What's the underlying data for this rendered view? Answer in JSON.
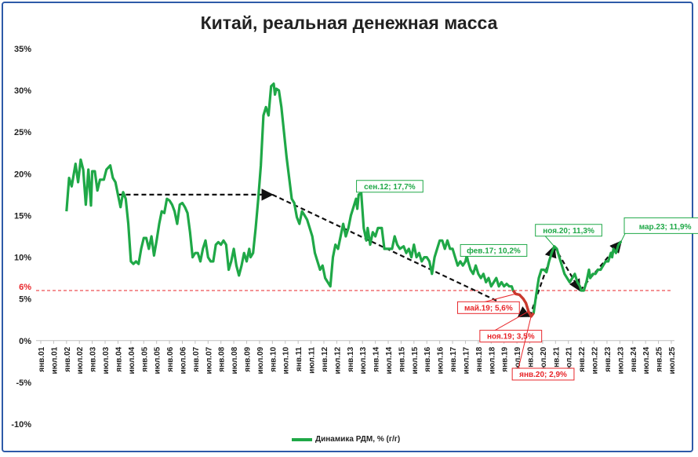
{
  "chart_data": {
    "type": "line",
    "title": "Китай, реальная денежная масса",
    "y_tick_labels": [
      "35%",
      "30%",
      "25%",
      "20%",
      "15%",
      "10%",
      "5%",
      "0%",
      "-5%",
      "-10%"
    ],
    "y_ticks": [
      35,
      30,
      25,
      20,
      15,
      10,
      5,
      0,
      -5,
      -10
    ],
    "ylim": [
      -10,
      35
    ],
    "x_tick_labels": [
      "янв.01",
      "июл.01",
      "янв.02",
      "июл.02",
      "янв.03",
      "июл.03",
      "янв.04",
      "июл.04",
      "янв.05",
      "июл.05",
      "янв.06",
      "июл.06",
      "янв.07",
      "июл.07",
      "янв.08",
      "июл.08",
      "янв.09",
      "июл.09",
      "янв.10",
      "июл.10",
      "янв.11",
      "июл.11",
      "янв.12",
      "июл.12",
      "янв.13",
      "июл.13",
      "янв.14",
      "июл.14",
      "янв.15",
      "июл.15",
      "янв.16",
      "июл.16",
      "янв.17",
      "июл.17",
      "янв.18",
      "июл.18",
      "янв.19",
      "июл.19",
      "янв.20",
      "июл.20",
      "янв.21",
      "июл.21",
      "янв.22",
      "июл.22",
      "янв.23",
      "июл.23",
      "янв.24",
      "июл.24",
      "янв.25",
      "июл.25"
    ],
    "reference_line": {
      "label": "6%",
      "value": 6,
      "color": "#e8262a"
    },
    "series": [
      {
        "name": "Динамика РДМ, % (г/г)",
        "color": "#1fa847",
        "highlight_color": "#e8262a",
        "points": [
          [
            2002.0,
            15.5
          ],
          [
            2002.1,
            19.5
          ],
          [
            2002.2,
            18.5
          ],
          [
            2002.35,
            21.2
          ],
          [
            2002.45,
            19.0
          ],
          [
            2002.55,
            21.7
          ],
          [
            2002.65,
            20.5
          ],
          [
            2002.75,
            16.3
          ],
          [
            2002.85,
            20.5
          ],
          [
            2002.95,
            16.2
          ],
          [
            2003.0,
            20.3
          ],
          [
            2003.1,
            20.3
          ],
          [
            2003.2,
            18.0
          ],
          [
            2003.3,
            19.3
          ],
          [
            2003.45,
            19.3
          ],
          [
            2003.55,
            20.5
          ],
          [
            2003.7,
            21.0
          ],
          [
            2003.8,
            19.5
          ],
          [
            2003.9,
            19.0
          ],
          [
            2004.0,
            17.5
          ],
          [
            2004.1,
            16.0
          ],
          [
            2004.2,
            17.8
          ],
          [
            2004.3,
            17.0
          ],
          [
            2004.4,
            14.0
          ],
          [
            2004.5,
            9.5
          ],
          [
            2004.6,
            9.2
          ],
          [
            2004.7,
            9.5
          ],
          [
            2004.8,
            9.2
          ],
          [
            2004.9,
            11.0
          ],
          [
            2005.0,
            12.3
          ],
          [
            2005.1,
            12.3
          ],
          [
            2005.2,
            11.0
          ],
          [
            2005.3,
            12.5
          ],
          [
            2005.4,
            10.2
          ],
          [
            2005.5,
            12.0
          ],
          [
            2005.6,
            14.0
          ],
          [
            2005.7,
            15.5
          ],
          [
            2005.8,
            15.3
          ],
          [
            2005.9,
            17.0
          ],
          [
            2006.0,
            16.8
          ],
          [
            2006.1,
            16.3
          ],
          [
            2006.2,
            15.5
          ],
          [
            2006.3,
            14.0
          ],
          [
            2006.4,
            16.3
          ],
          [
            2006.5,
            16.5
          ],
          [
            2006.6,
            16.0
          ],
          [
            2006.7,
            15.3
          ],
          [
            2006.8,
            13.0
          ],
          [
            2006.9,
            10.0
          ],
          [
            2007.0,
            10.5
          ],
          [
            2007.1,
            10.5
          ],
          [
            2007.2,
            9.5
          ],
          [
            2007.3,
            11.0
          ],
          [
            2007.4,
            12.0
          ],
          [
            2007.5,
            10.0
          ],
          [
            2007.6,
            9.5
          ],
          [
            2007.7,
            9.5
          ],
          [
            2007.8,
            11.5
          ],
          [
            2007.9,
            11.8
          ],
          [
            2008.0,
            11.5
          ],
          [
            2008.1,
            12.0
          ],
          [
            2008.2,
            11.5
          ],
          [
            2008.3,
            8.5
          ],
          [
            2008.4,
            9.5
          ],
          [
            2008.5,
            11.0
          ],
          [
            2008.6,
            9.0
          ],
          [
            2008.7,
            7.8
          ],
          [
            2008.8,
            9.0
          ],
          [
            2008.9,
            10.5
          ],
          [
            2009.0,
            9.5
          ],
          [
            2009.1,
            11.0
          ],
          [
            2009.15,
            10.0
          ],
          [
            2009.25,
            10.5
          ],
          [
            2009.35,
            13.5
          ],
          [
            2009.45,
            17.0
          ],
          [
            2009.55,
            21.0
          ],
          [
            2009.65,
            27.0
          ],
          [
            2009.75,
            28.0
          ],
          [
            2009.85,
            27.0
          ],
          [
            2009.95,
            30.5
          ],
          [
            2010.05,
            30.8
          ],
          [
            2010.1,
            29.5
          ],
          [
            2010.15,
            30.2
          ],
          [
            2010.25,
            30.0
          ],
          [
            2010.35,
            28.0
          ],
          [
            2010.45,
            25.0
          ],
          [
            2010.55,
            22.0
          ],
          [
            2010.65,
            19.5
          ],
          [
            2010.75,
            17.0
          ],
          [
            2010.85,
            16.5
          ],
          [
            2010.95,
            14.8
          ],
          [
            2011.05,
            14.0
          ],
          [
            2011.15,
            15.5
          ],
          [
            2011.25,
            15.0
          ],
          [
            2011.35,
            14.5
          ],
          [
            2011.45,
            13.5
          ],
          [
            2011.55,
            12.5
          ],
          [
            2011.65,
            10.5
          ],
          [
            2011.75,
            9.5
          ],
          [
            2011.85,
            8.5
          ],
          [
            2011.95,
            9.0
          ],
          [
            2012.05,
            7.5
          ],
          [
            2012.15,
            7.0
          ],
          [
            2012.25,
            6.5
          ],
          [
            2012.35,
            10.0
          ],
          [
            2012.45,
            11.5
          ],
          [
            2012.55,
            11.0
          ],
          [
            2012.65,
            12.5
          ],
          [
            2012.75,
            14.0
          ],
          [
            2012.85,
            12.5
          ],
          [
            2012.95,
            13.5
          ],
          [
            2013.05,
            15.0
          ],
          [
            2013.15,
            16.0
          ],
          [
            2013.25,
            17.0
          ],
          [
            2013.3,
            15.8
          ],
          [
            2013.35,
            17.5
          ],
          [
            2013.45,
            17.7
          ],
          [
            2013.55,
            13.5
          ],
          [
            2013.65,
            12.0
          ],
          [
            2013.7,
            13.5
          ],
          [
            2013.8,
            11.5
          ],
          [
            2013.9,
            13.0
          ],
          [
            2014.0,
            12.5
          ],
          [
            2014.1,
            13.5
          ],
          [
            2014.25,
            13.5
          ],
          [
            2014.35,
            11.0
          ],
          [
            2014.5,
            11.0
          ],
          [
            2014.65,
            11.0
          ],
          [
            2014.75,
            12.5
          ],
          [
            2014.85,
            11.5
          ],
          [
            2014.95,
            11.0
          ],
          [
            2015.1,
            11.3
          ],
          [
            2015.2,
            10.5
          ],
          [
            2015.3,
            11.0
          ],
          [
            2015.4,
            10.0
          ],
          [
            2015.5,
            11.5
          ],
          [
            2015.6,
            10.0
          ],
          [
            2015.7,
            10.5
          ],
          [
            2015.8,
            9.5
          ],
          [
            2015.9,
            10.0
          ],
          [
            2016.0,
            10.0
          ],
          [
            2016.1,
            9.5
          ],
          [
            2016.2,
            8.0
          ],
          [
            2016.3,
            10.0
          ],
          [
            2016.4,
            11.0
          ],
          [
            2016.5,
            12.0
          ],
          [
            2016.6,
            12.0
          ],
          [
            2016.7,
            11.0
          ],
          [
            2016.8,
            12.0
          ],
          [
            2016.9,
            11.0
          ],
          [
            2017.0,
            11.0
          ],
          [
            2017.1,
            10.0
          ],
          [
            2017.2,
            9.0
          ],
          [
            2017.3,
            9.5
          ],
          [
            2017.4,
            9.0
          ],
          [
            2017.5,
            9.5
          ],
          [
            2017.55,
            10.2
          ],
          [
            2017.6,
            9.5
          ],
          [
            2017.7,
            8.5
          ],
          [
            2017.8,
            8.0
          ],
          [
            2017.9,
            9.0
          ],
          [
            2018.0,
            8.0
          ],
          [
            2018.1,
            7.5
          ],
          [
            2018.2,
            8.0
          ],
          [
            2018.3,
            7.0
          ],
          [
            2018.4,
            7.5
          ],
          [
            2018.5,
            6.5
          ],
          [
            2018.6,
            7.0
          ],
          [
            2018.7,
            7.5
          ],
          [
            2018.8,
            6.5
          ],
          [
            2018.9,
            7.0
          ],
          [
            2019.0,
            6.5
          ],
          [
            2019.1,
            6.8
          ],
          [
            2019.2,
            6.5
          ],
          [
            2019.3,
            6.5
          ],
          [
            2019.35,
            6.0
          ],
          [
            2019.45,
            5.6
          ],
          [
            2019.6,
            5.5
          ],
          [
            2019.75,
            5.0
          ],
          [
            2019.85,
            4.5
          ],
          [
            2019.95,
            3.5
          ],
          [
            2020.05,
            2.9
          ],
          [
            2020.15,
            3.3
          ],
          [
            2020.25,
            5.5
          ],
          [
            2020.35,
            7.5
          ],
          [
            2020.45,
            8.5
          ],
          [
            2020.55,
            8.5
          ],
          [
            2020.65,
            8.2
          ],
          [
            2020.75,
            9.5
          ],
          [
            2020.85,
            10.5
          ],
          [
            2020.95,
            11.3
          ],
          [
            2021.05,
            11.0
          ],
          [
            2021.15,
            10.0
          ],
          [
            2021.25,
            9.0
          ],
          [
            2021.35,
            8.0
          ],
          [
            2021.45,
            7.5
          ],
          [
            2021.55,
            7.0
          ],
          [
            2021.65,
            7.5
          ],
          [
            2021.75,
            8.0
          ],
          [
            2021.85,
            7.0
          ],
          [
            2021.95,
            6.5
          ],
          [
            2022.0,
            6.0
          ],
          [
            2022.1,
            6.0
          ],
          [
            2022.2,
            7.0
          ],
          [
            2022.3,
            8.5
          ],
          [
            2022.35,
            7.5
          ],
          [
            2022.45,
            8.0
          ],
          [
            2022.55,
            8.0
          ],
          [
            2022.65,
            8.5
          ],
          [
            2022.75,
            8.5
          ],
          [
            2022.85,
            9.0
          ],
          [
            2022.95,
            9.5
          ],
          [
            2023.05,
            9.5
          ],
          [
            2023.15,
            10.5
          ],
          [
            2023.2,
            10.0
          ],
          [
            2023.25,
            11.0
          ],
          [
            2023.35,
            10.5
          ],
          [
            2023.45,
            11.5
          ],
          [
            2023.55,
            11.9
          ]
        ],
        "highlight_range": [
          2019.35,
          2020.15
        ]
      }
    ],
    "trend_arrows": [
      [
        [
          2004.0,
          17.5
        ],
        [
          2010.0,
          17.5
        ],
        [
          2020.0,
          2.9
        ]
      ],
      [
        [
          2020.0,
          2.9
        ],
        [
          2020.95,
          11.3
        ],
        [
          2021.95,
          6.0
        ],
        [
          2023.55,
          11.9
        ]
      ]
    ],
    "annotations": [
      {
        "text": "сен.12; 17,7%",
        "x": 2013.45,
        "y": 17.7,
        "color": "#1fa847"
      },
      {
        "text": "фев.17; 10,2%",
        "x": 2017.55,
        "y": 10.2,
        "color": "#1fa847"
      },
      {
        "text": "ноя.20; 11,3%",
        "x": 2020.95,
        "y": 11.3,
        "color": "#1fa847"
      },
      {
        "text": "мар.23; 11,9%",
        "x": 2023.55,
        "y": 11.9,
        "color": "#1fa847"
      },
      {
        "text": "май.19; 5,6%",
        "x": 2019.45,
        "y": 5.6,
        "color": "#e8262a"
      },
      {
        "text": "ноя.19; 3,5%",
        "x": 2019.95,
        "y": 3.5,
        "color": "#e8262a"
      },
      {
        "text": "янв.20; 2,9%",
        "x": 2020.05,
        "y": 2.9,
        "color": "#e8262a"
      }
    ],
    "legend": {
      "position": "bottom",
      "label": "Динамика РДМ, % (г/г)"
    },
    "grid": false
  }
}
